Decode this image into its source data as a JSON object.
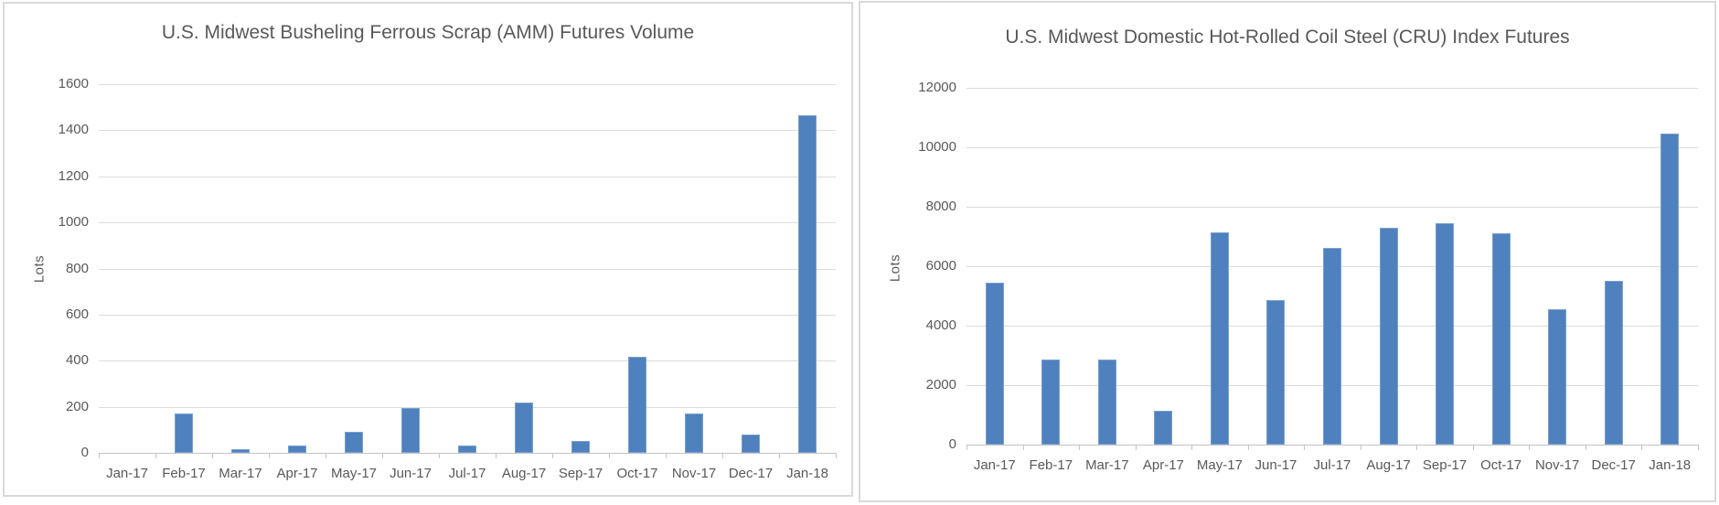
{
  "page": {
    "background": "#ffffff",
    "panel_border_color": "#d9d9d9"
  },
  "chart_data": [
    {
      "type": "bar",
      "title": "U.S. Midwest Busheling Ferrous Scrap (AMM) Futures Volume",
      "xlabel": "",
      "ylabel": "Lots",
      "categories": [
        "Jan-17",
        "Feb-17",
        "Mar-17",
        "Apr-17",
        "May-17",
        "Jun-17",
        "Jul-17",
        "Aug-17",
        "Sep-17",
        "Oct-17",
        "Nov-17",
        "Dec-17",
        "Jan-18"
      ],
      "values": [
        0,
        170,
        15,
        30,
        90,
        195,
        30,
        220,
        50,
        415,
        170,
        80,
        1465
      ],
      "ylim": [
        0,
        1600
      ],
      "ytick_step": 200,
      "ytick_labels": [
        "0",
        "200",
        "400",
        "600",
        "800",
        "1000",
        "1200",
        "1400",
        "1600"
      ],
      "grid": true,
      "legend": null,
      "bar_color": "#4e81bd",
      "gridline_color": "#dcdcdc",
      "text_color": "#595959"
    },
    {
      "type": "bar",
      "title": "U.S. Midwest Domestic Hot-Rolled Coil Steel (CRU) Index Futures",
      "xlabel": "",
      "ylabel": "Lots",
      "categories": [
        "Jan-17",
        "Feb-17",
        "Mar-17",
        "Apr-17",
        "May-17",
        "Jun-17",
        "Jul-17",
        "Aug-17",
        "Sep-17",
        "Oct-17",
        "Nov-17",
        "Dec-17",
        "Jan-18"
      ],
      "values": [
        5450,
        2850,
        2850,
        1150,
        7150,
        4850,
        6600,
        7300,
        7450,
        7100,
        4550,
        5500,
        10450
      ],
      "ylim": [
        0,
        12000
      ],
      "ytick_step": 2000,
      "ytick_labels": [
        "0",
        "2000",
        "4000",
        "6000",
        "8000",
        "10000",
        "12000"
      ],
      "grid": true,
      "legend": null,
      "bar_color": "#4e81bd",
      "gridline_color": "#dcdcdc",
      "text_color": "#595959"
    }
  ]
}
